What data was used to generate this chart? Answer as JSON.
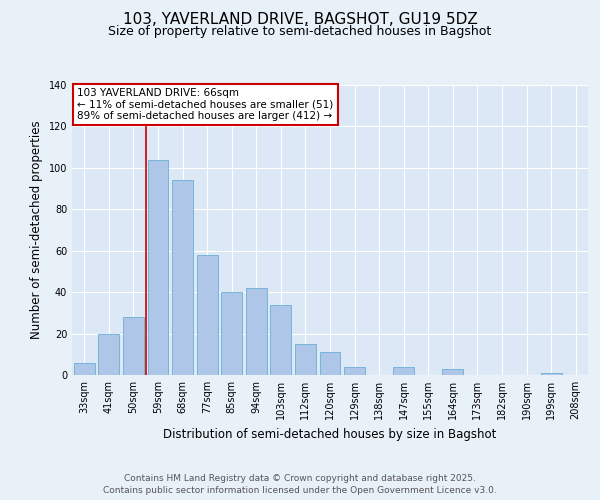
{
  "title": "103, YAVERLAND DRIVE, BAGSHOT, GU19 5DZ",
  "subtitle": "Size of property relative to semi-detached houses in Bagshot",
  "xlabel": "Distribution of semi-detached houses by size in Bagshot",
  "ylabel": "Number of semi-detached properties",
  "categories": [
    "33sqm",
    "41sqm",
    "50sqm",
    "59sqm",
    "68sqm",
    "77sqm",
    "85sqm",
    "94sqm",
    "103sqm",
    "112sqm",
    "120sqm",
    "129sqm",
    "138sqm",
    "147sqm",
    "155sqm",
    "164sqm",
    "173sqm",
    "182sqm",
    "190sqm",
    "199sqm",
    "208sqm"
  ],
  "values": [
    6,
    20,
    28,
    104,
    94,
    58,
    40,
    42,
    34,
    15,
    11,
    4,
    0,
    4,
    0,
    3,
    0,
    0,
    0,
    1,
    0
  ],
  "bar_color": "#aec6e8",
  "bar_edge_color": "#6baed6",
  "vline_index": 3,
  "vline_color": "#cc0000",
  "annotation_text": "103 YAVERLAND DRIVE: 66sqm\n← 11% of semi-detached houses are smaller (51)\n89% of semi-detached houses are larger (412) →",
  "annotation_box_color": "#ffffff",
  "annotation_box_edge_color": "#cc0000",
  "footer": "Contains HM Land Registry data © Crown copyright and database right 2025.\nContains public sector information licensed under the Open Government Licence v3.0.",
  "ylim": [
    0,
    140
  ],
  "yticks": [
    0,
    20,
    40,
    60,
    80,
    100,
    120,
    140
  ],
  "background_color": "#e8f0f8",
  "plot_background_color": "#dce8f5",
  "grid_color": "#ffffff",
  "title_fontsize": 11,
  "subtitle_fontsize": 9,
  "axis_label_fontsize": 8.5,
  "tick_fontsize": 7,
  "footer_fontsize": 6.5,
  "annotation_fontsize": 7.5
}
